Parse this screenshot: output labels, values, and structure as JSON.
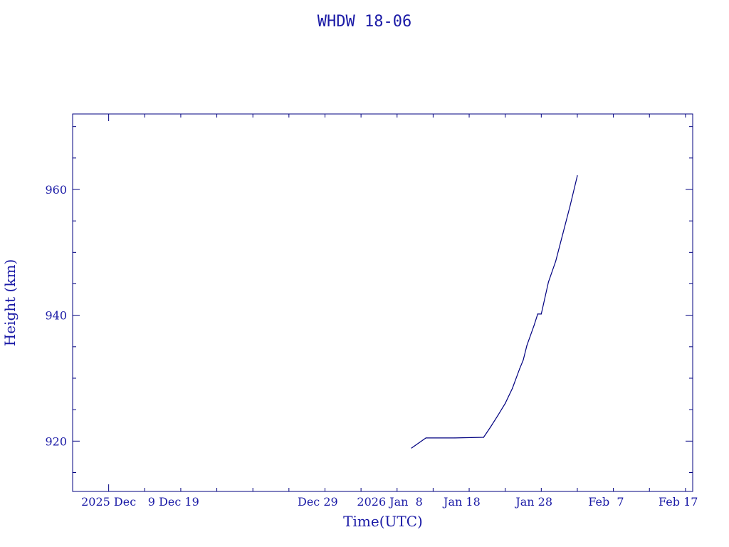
{
  "chart_data": {
    "type": "line",
    "title": "WHDW 18-06",
    "xlabel": "Time(UTC)",
    "ylabel": "Height (km)",
    "x_range": [
      "2025-11-25",
      "2026-02-19"
    ],
    "ylim": [
      912,
      972
    ],
    "y_ticks": [
      920,
      940,
      960
    ],
    "x_ticks": [
      {
        "date": "2025-11-30",
        "label": "2025 Dec"
      },
      {
        "date": "2025-12-09",
        "label": "9 Dec 19"
      },
      {
        "date": "2025-12-29",
        "label": "Dec 29"
      },
      {
        "date": "2026-01-08",
        "label": "2026 Jan  8"
      },
      {
        "date": "2026-01-18",
        "label": "Jan 18"
      },
      {
        "date": "2026-01-28",
        "label": "Jan 28"
      },
      {
        "date": "2026-02-07",
        "label": "Feb  7"
      },
      {
        "date": "2026-02-17",
        "label": "Feb 17"
      }
    ],
    "grid": false,
    "series": [
      {
        "color": "#000080",
        "points": [
          {
            "x": "2026-01-11",
            "y": 918.9
          },
          {
            "x": "2026-01-13",
            "y": 920.5
          },
          {
            "x": "2026-01-17",
            "y": 920.5
          },
          {
            "x": "2026-01-21",
            "y": 920.6
          },
          {
            "x": "2026-01-22",
            "y": 922.3
          },
          {
            "x": "2026-01-23",
            "y": 924.1
          },
          {
            "x": "2026-01-24",
            "y": 926.0
          },
          {
            "x": "2026-01-25",
            "y": 928.4
          },
          {
            "x": "2026-01-26",
            "y": 931.5
          },
          {
            "x": "2026-01-26T12:00",
            "y": 932.9
          },
          {
            "x": "2026-01-27",
            "y": 935.2
          },
          {
            "x": "2026-01-28",
            "y": 938.4
          },
          {
            "x": "2026-01-28T12:00",
            "y": 940.2
          },
          {
            "x": "2026-01-29",
            "y": 940.2
          },
          {
            "x": "2026-01-30",
            "y": 945.3
          },
          {
            "x": "2026-01-31",
            "y": 948.6
          },
          {
            "x": "2026-02-01",
            "y": 953.0
          },
          {
            "x": "2026-02-02",
            "y": 957.4
          },
          {
            "x": "2026-02-03",
            "y": 962.2
          }
        ]
      }
    ]
  }
}
